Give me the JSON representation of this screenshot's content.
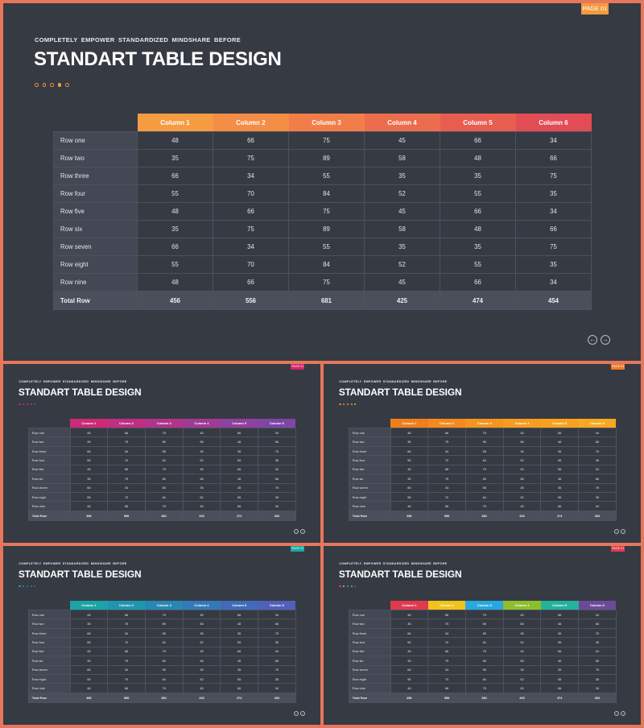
{
  "slide": {
    "subtitle": "COMPLETELY EMPOWER STANDARDIZED MINDSHARE BEFORE",
    "title": "STANDART TABLE DESIGN",
    "page_label": "PAGE 01"
  },
  "table": {
    "columns": [
      "Column 1",
      "Column 2",
      "Column 3",
      "Column 4",
      "Column 5",
      "Column 6"
    ],
    "rows": [
      {
        "label": "Row one",
        "values": [
          "48",
          "66",
          "75",
          "45",
          "66",
          "34"
        ]
      },
      {
        "label": "Row two",
        "values": [
          "35",
          "75",
          "89",
          "58",
          "48",
          "66"
        ]
      },
      {
        "label": "Row three",
        "values": [
          "66",
          "34",
          "55",
          "35",
          "35",
          "75"
        ]
      },
      {
        "label": "Row four",
        "values": [
          "55",
          "70",
          "84",
          "52",
          "55",
          "35"
        ]
      },
      {
        "label": "Row five",
        "values": [
          "48",
          "66",
          "75",
          "45",
          "66",
          "34"
        ]
      },
      {
        "label": "Row six",
        "values": [
          "35",
          "75",
          "89",
          "58",
          "48",
          "66"
        ]
      },
      {
        "label": "Row seven",
        "values": [
          "66",
          "34",
          "55",
          "35",
          "35",
          "75"
        ]
      },
      {
        "label": "Row eight",
        "values": [
          "55",
          "70",
          "84",
          "52",
          "55",
          "35"
        ]
      },
      {
        "label": "Row nine",
        "values": [
          "48",
          "66",
          "75",
          "45",
          "66",
          "34"
        ]
      }
    ],
    "total": {
      "label": "Total Row",
      "values": [
        "456",
        "556",
        "681",
        "425",
        "474",
        "454"
      ]
    }
  },
  "nav": {
    "prev_icon": "arrow-left-icon",
    "next_icon": "arrow-right-icon"
  },
  "themes": {
    "orange-red": {
      "badge": "#f39a3e",
      "header_colors": [
        "#f59b42",
        "#f48d45",
        "#f17e49",
        "#ec6d4d",
        "#e75e51",
        "#e24c55"
      ],
      "dot_colors": [
        "#e8893c",
        "#e8893c",
        "#e8893c",
        "#f2a03c",
        "#e8893c"
      ]
    },
    "magenta-purple": {
      "badge": "#d4246b",
      "header_colors": [
        "#cc2a77",
        "#be2f82",
        "#b0348b",
        "#a03a95",
        "#90409e",
        "#7f45a6"
      ],
      "dot_colors": [
        "#d4246b",
        "#c02f80",
        "#ab3990",
        "#9740a0",
        "#8245a8"
      ]
    },
    "orange": {
      "badge": "#f07a24",
      "header_colors": [
        "#f07e1c",
        "#f38a1d",
        "#f5941e",
        "#f69c1f",
        "#f7a21f",
        "#f8a820"
      ],
      "dot_colors": [
        "#f07a24",
        "#f38a1d",
        "#f5941e",
        "#f69c1f",
        "#f8a820"
      ]
    },
    "teal-purple": {
      "badge": "#17a9a2",
      "header_colors": [
        "#1ba3a6",
        "#2096ae",
        "#2788b4",
        "#3379b8",
        "#416aba",
        "#5060bb"
      ],
      "dot_colors": [
        "#17a9a2",
        "#2096ae",
        "#3379b8",
        "#416aba",
        "#5060bb"
      ]
    },
    "rainbow": {
      "badge": "#e03a50",
      "header_colors": [
        "#e03a50",
        "#f2c318",
        "#29a7df",
        "#8cbf2c",
        "#23b29b",
        "#6b4b98"
      ],
      "dot_colors": [
        "#e03a50",
        "#f2c318",
        "#29a7df",
        "#8cbf2c",
        "#6b4b98"
      ]
    }
  }
}
